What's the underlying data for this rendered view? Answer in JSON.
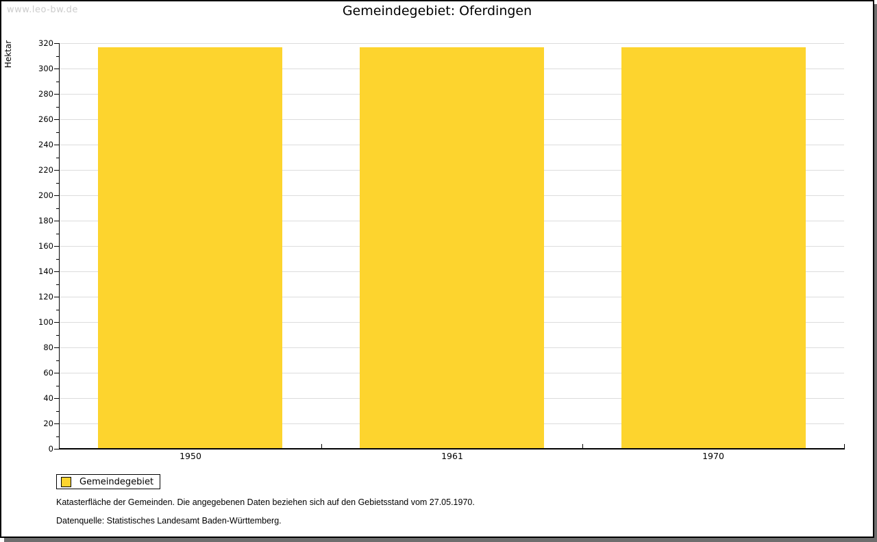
{
  "watermark": "www.leo-bw.de",
  "title": "Gemeindegebiet: Oferdingen",
  "chart_data": {
    "type": "bar",
    "title": "Gemeindegebiet: Oferdingen",
    "categories": [
      "1950",
      "1961",
      "1970"
    ],
    "series": [
      {
        "name": "Gemeindegebiet",
        "values": [
          317,
          317,
          317
        ]
      }
    ],
    "xlabel": "",
    "ylabel": "Hektar",
    "ylim": [
      0,
      320
    ],
    "ytick_step": 20,
    "yminor_step": 10,
    "grid": "horizontal-major",
    "legend_position": "bottom-left",
    "bar_color": "#fdd42e"
  },
  "legend": {
    "items": [
      {
        "label": "Gemeindegebiet",
        "color": "#fdd42e"
      }
    ]
  },
  "footer": {
    "line1": "Katasterfläche der Gemeinden. Die angegebenen Daten beziehen sich auf den Gebietsstand vom 27.05.1970.",
    "line2": "Datenquelle: Statistisches Landesamt Baden-Württemberg."
  },
  "colors": {
    "bar": "#fdd42e",
    "gridline": "#dcdcdc",
    "axis": "#000000",
    "watermark": "#cccccc",
    "frame_shadow": "#6e6e6e"
  }
}
